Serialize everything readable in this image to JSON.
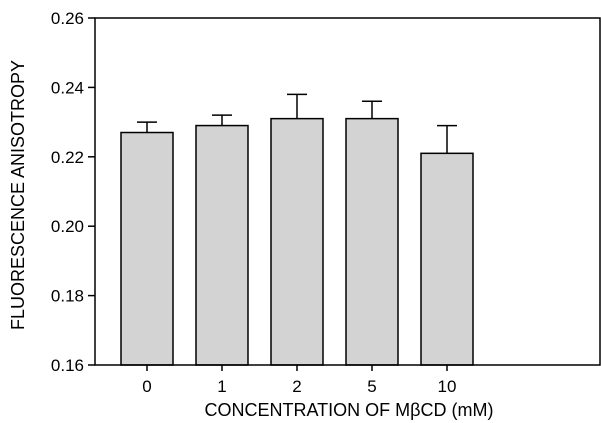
{
  "chart_data": {
    "type": "bar",
    "xlabel": "CONCENTRATION OF MβCD (mM)",
    "ylabel": "FLUORESCENCE ANISOTROPY",
    "categories": [
      "0",
      "1",
      "2",
      "5",
      "10"
    ],
    "values": [
      0.227,
      0.229,
      0.231,
      0.231,
      0.221
    ],
    "errors": [
      0.003,
      0.003,
      0.007,
      0.005,
      0.008
    ],
    "ylim": [
      0.16,
      0.26
    ],
    "yticks": [
      "0.16",
      "0.18",
      "0.20",
      "0.22",
      "0.24",
      "0.26"
    ],
    "bar_color": "#d3d3d3",
    "grid": false,
    "legend": "none"
  }
}
